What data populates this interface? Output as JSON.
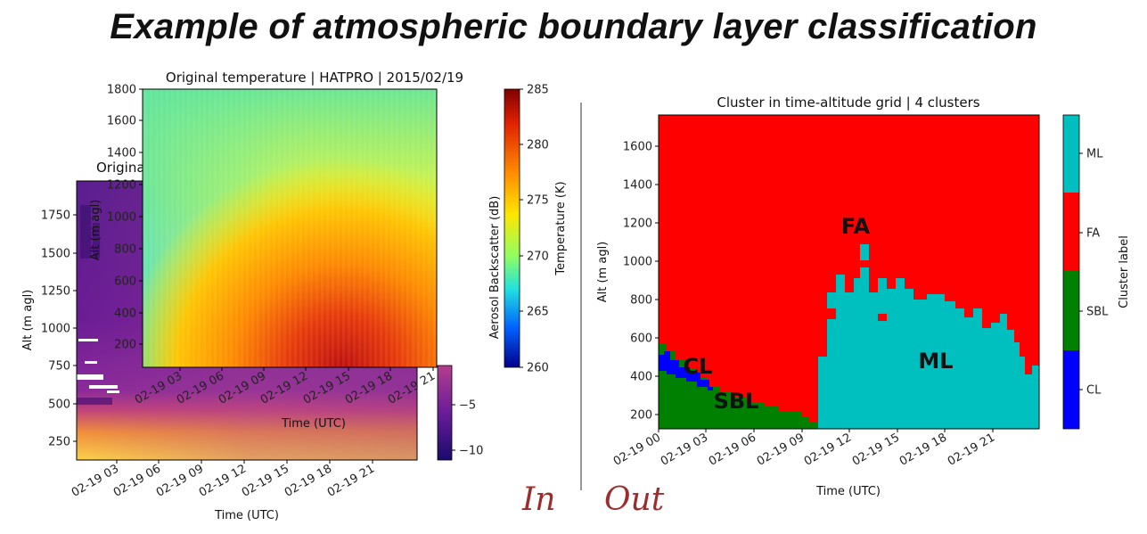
{
  "title": "Example of atmospheric boundary layer classification",
  "in_label": "In",
  "out_label": "Out",
  "backscatter": {
    "title": "Original",
    "xlabel": "Time (UTC)",
    "ylabel": "Alt (m agl)",
    "cbar_label": "Aerosol Backscatter (dB)",
    "yticks": [
      "250",
      "500",
      "750",
      "1000",
      "1250",
      "1500",
      "1750"
    ],
    "xticks": [
      "02-19 03",
      "02-19 06",
      "02-19 09",
      "02-19 12",
      "02-19 15",
      "02-19 18",
      "02-19 21"
    ],
    "cbar_ticks": [
      "−5",
      "−10"
    ]
  },
  "temperature": {
    "title": "Original temperature | HATPRO | 2015/02/19",
    "xlabel": "Time (UTC)",
    "ylabel": "Alt (m agl)",
    "cbar_label": "Temperature (K)",
    "yticks": [
      "200",
      "400",
      "600",
      "800",
      "1000",
      "1200",
      "1400",
      "1600",
      "1800"
    ],
    "xticks": [
      "02-19 03",
      "02-19 06",
      "02-19 09",
      "02-19 12",
      "02-19 15",
      "02-19 18",
      "02-19 21"
    ],
    "cbar_ticks": [
      "285",
      "280",
      "275",
      "270",
      "265",
      "260"
    ]
  },
  "clusters": {
    "title": "Cluster in time-altitude grid | 4 clusters",
    "xlabel": "Time (UTC)",
    "ylabel": "Alt (m agl)",
    "cbar_label": "Cluster label",
    "yticks": [
      "200",
      "400",
      "600",
      "800",
      "1000",
      "1200",
      "1400",
      "1600"
    ],
    "xticks": [
      "02-19 00",
      "02-19 03",
      "02-19 06",
      "02-19 09",
      "02-19 12",
      "02-19 15",
      "02-19 18",
      "02-19 21"
    ],
    "cbar_ticks": [
      "ML",
      "FA",
      "SBL",
      "CL"
    ],
    "region_labels": {
      "fa": "FA",
      "ml": "ML",
      "cl": "CL",
      "sbl": "SBL"
    },
    "colors": {
      "CL": "#0000ff",
      "SBL": "#008000",
      "FA": "#ff0000",
      "ML": "#00bfbf"
    }
  }
}
